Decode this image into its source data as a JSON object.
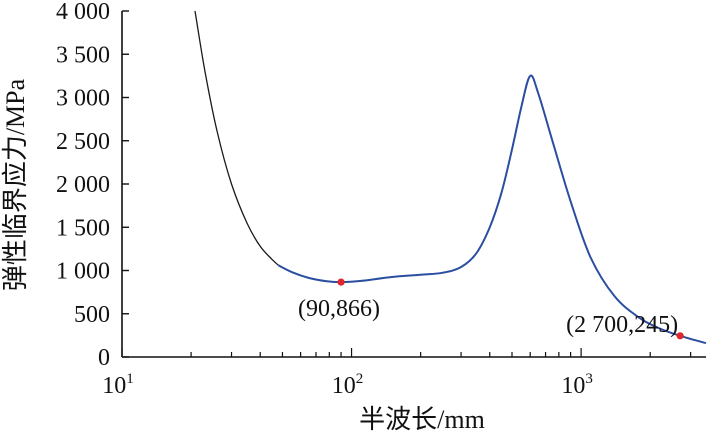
{
  "chart_data": {
    "type": "line",
    "title": "",
    "xlabel": "半波长/mm",
    "ylabel": "弹性临界应力/MPa",
    "xscale": "log",
    "xlim": [
      10,
      3500
    ],
    "ylim": [
      0,
      4000
    ],
    "grid": false,
    "legend": "none",
    "x_ticks": [
      {
        "value": 10,
        "base": "10",
        "exp": "1"
      },
      {
        "value": 100,
        "base": "10",
        "exp": "2"
      },
      {
        "value": 1000,
        "base": "10",
        "exp": "3"
      }
    ],
    "y_ticks": [
      {
        "value": 0,
        "label": "0"
      },
      {
        "value": 500,
        "label": "500"
      },
      {
        "value": 1000,
        "label": "1 000"
      },
      {
        "value": 1500,
        "label": "1 500"
      },
      {
        "value": 2000,
        "label": "2 000"
      },
      {
        "value": 2500,
        "label": "2 500"
      },
      {
        "value": 3000,
        "label": "3 000"
      },
      {
        "value": 3500,
        "label": "3 500"
      },
      {
        "value": 4000,
        "label": "4 000"
      }
    ],
    "series": [
      {
        "color": "#1a1a1a",
        "points": [
          [
            20.8,
            4000
          ],
          [
            23,
            3300
          ],
          [
            26,
            2600
          ],
          [
            30,
            2000
          ],
          [
            35,
            1550
          ],
          [
            40,
            1280
          ],
          [
            45,
            1130
          ],
          [
            48,
            1060
          ]
        ]
      },
      {
        "color": "#2a4ea0",
        "points": [
          [
            48,
            1060
          ],
          [
            55,
            980
          ],
          [
            65,
            915
          ],
          [
            78,
            875
          ],
          [
            90,
            866
          ],
          [
            110,
            880
          ],
          [
            150,
            925
          ],
          [
            200,
            950
          ],
          [
            250,
            975
          ],
          [
            300,
            1040
          ],
          [
            350,
            1200
          ],
          [
            400,
            1500
          ],
          [
            450,
            1900
          ],
          [
            500,
            2400
          ],
          [
            550,
            2900
          ],
          [
            600,
            3250
          ],
          [
            650,
            3050
          ],
          [
            750,
            2500
          ],
          [
            900,
            1800
          ],
          [
            1100,
            1150
          ],
          [
            1400,
            700
          ],
          [
            1800,
            450
          ],
          [
            2200,
            330
          ],
          [
            2700,
            245
          ],
          [
            3500,
            160
          ]
        ]
      }
    ],
    "annotations": [
      {
        "x": 90,
        "y": 866,
        "label": "(90,866)",
        "marker_color": "#e0262b"
      },
      {
        "x": 2700,
        "y": 245,
        "label": "(2 700,245)",
        "marker_color": "#e0262b"
      }
    ]
  }
}
